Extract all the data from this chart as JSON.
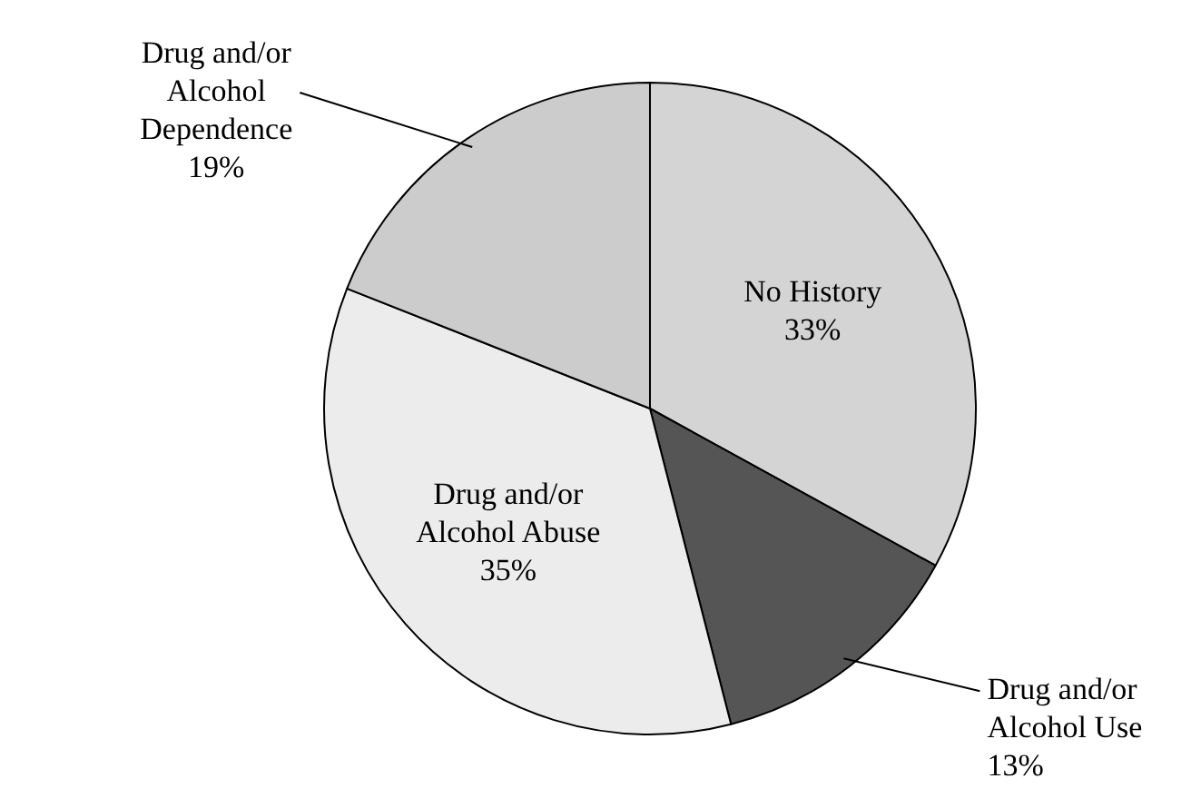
{
  "chart_data": {
    "type": "pie",
    "categories": [
      "No History",
      "Drug and/or Alcohol Use",
      "Drug and/or Alcohol Abuse",
      "Drug and/or Alcohol Dependence"
    ],
    "values": [
      33,
      13,
      35,
      19
    ],
    "value_labels": [
      "33%",
      "13%",
      "35%",
      "19%"
    ],
    "colors": [
      "#d4d4d4",
      "#555555",
      "#ececec",
      "#cccccc"
    ]
  }
}
